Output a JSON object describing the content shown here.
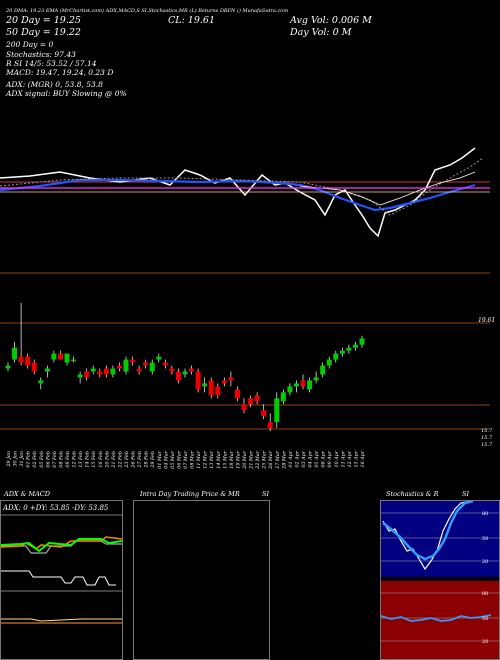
{
  "header": {
    "line1": "20 DMA: 19.23  EMA (MrChartist.com) ADX,MACD,S  SI,Stochastics,MR  (L) Returns DBFN  () MunafaSutra.com",
    "sma_20": "20 Day = 19.25",
    "sma_50": "50 Day = 19.22",
    "sma_200": "200 Day = 0",
    "stochastics": "Stochastics: 97.43",
    "rsi": "R    SI 14/5: 53.52 / 57.14",
    "macd": "MACD: 19.47, 19.24, 0.23 D",
    "adx": "ADX:                              (MGR) 0, 53.8, 53.8",
    "adx_signal": "ADX signal:                         BUY Slowing @ 0%",
    "close": "CL: 19.61",
    "avg_vol": "Avg Vol: 0.006  M",
    "day_vol": "Day Vol: 0   M"
  },
  "price_labels": {
    "last": "19.61",
    "level1": "15.7",
    "level2": "15.7",
    "level3": "15.7"
  },
  "chart_data": {
    "type": "candlestick",
    "dates": [
      "29 Jan",
      "30 Jan",
      "31 Jan",
      "01 Feb",
      "02 Feb",
      "05 Feb",
      "06 Feb",
      "07 Feb",
      "08 Feb",
      "09 Feb",
      "12 Feb",
      "13 Feb",
      "14 Feb",
      "15 Feb",
      "16 Feb",
      "20 Feb",
      "21 Feb",
      "22 Feb",
      "23 Feb",
      "26 Feb",
      "27 Feb",
      "28 Feb",
      "29 Feb",
      "01 Mar",
      "04 Mar",
      "05 Mar",
      "06 Mar",
      "07 Mar",
      "08 Mar",
      "11 Mar",
      "12 Mar",
      "13 Mar",
      "14 Mar",
      "15 Mar",
      "18 Mar",
      "19 Mar",
      "20 Mar",
      "21 Mar",
      "22 Mar",
      "25 Mar",
      "26 Mar",
      "27 Mar",
      "28 Mar",
      "01 Apr",
      "02 Apr",
      "03 Apr",
      "04 Apr",
      "05 Apr",
      "08 Apr",
      "09 Apr",
      "10 Apr",
      "11 Apr",
      "12 Apr",
      "15 Apr",
      "16 Apr"
    ],
    "candles": [
      {
        "o": 18.6,
        "h": 18.8,
        "l": 18.5,
        "c": 18.7
      },
      {
        "o": 18.9,
        "h": 19.5,
        "l": 18.8,
        "c": 19.3
      },
      {
        "o": 19.0,
        "h": 20.8,
        "l": 18.7,
        "c": 18.8
      },
      {
        "o": 19.0,
        "h": 19.1,
        "l": 18.6,
        "c": 18.7
      },
      {
        "o": 18.8,
        "h": 18.9,
        "l": 18.4,
        "c": 18.5
      },
      {
        "o": 18.1,
        "h": 18.3,
        "l": 17.9,
        "c": 18.2
      },
      {
        "o": 18.5,
        "h": 18.7,
        "l": 18.3,
        "c": 18.6
      },
      {
        "o": 18.9,
        "h": 19.2,
        "l": 18.8,
        "c": 19.1
      },
      {
        "o": 19.1,
        "h": 19.2,
        "l": 18.9,
        "c": 18.9
      },
      {
        "o": 18.8,
        "h": 19.1,
        "l": 18.7,
        "c": 19.1
      },
      {
        "o": 18.9,
        "h": 19.0,
        "l": 18.8,
        "c": 18.9
      },
      {
        "o": 18.3,
        "h": 18.5,
        "l": 18.1,
        "c": 18.4
      },
      {
        "o": 18.5,
        "h": 18.6,
        "l": 18.2,
        "c": 18.3
      },
      {
        "o": 18.5,
        "h": 18.7,
        "l": 18.4,
        "c": 18.6
      },
      {
        "o": 18.5,
        "h": 18.6,
        "l": 18.3,
        "c": 18.4
      },
      {
        "o": 18.6,
        "h": 18.7,
        "l": 18.3,
        "c": 18.4
      },
      {
        "o": 18.4,
        "h": 18.7,
        "l": 18.3,
        "c": 18.6
      },
      {
        "o": 18.7,
        "h": 18.8,
        "l": 18.5,
        "c": 18.6
      },
      {
        "o": 18.5,
        "h": 19.0,
        "l": 18.4,
        "c": 18.9
      },
      {
        "o": 18.9,
        "h": 19.0,
        "l": 18.7,
        "c": 18.8
      },
      {
        "o": 18.6,
        "h": 18.7,
        "l": 18.4,
        "c": 18.5
      },
      {
        "o": 18.8,
        "h": 18.9,
        "l": 18.6,
        "c": 18.7
      },
      {
        "o": 18.5,
        "h": 18.9,
        "l": 18.4,
        "c": 18.8
      },
      {
        "o": 18.9,
        "h": 19.1,
        "l": 18.8,
        "c": 19.0
      },
      {
        "o": 18.8,
        "h": 18.9,
        "l": 18.6,
        "c": 18.7
      },
      {
        "o": 18.6,
        "h": 18.7,
        "l": 18.4,
        "c": 18.5
      },
      {
        "o": 18.5,
        "h": 18.6,
        "l": 18.1,
        "c": 18.2
      },
      {
        "o": 18.4,
        "h": 18.6,
        "l": 18.3,
        "c": 18.5
      },
      {
        "o": 18.6,
        "h": 18.7,
        "l": 18.4,
        "c": 18.5
      },
      {
        "o": 18.5,
        "h": 18.6,
        "l": 17.8,
        "c": 17.9
      },
      {
        "o": 18.0,
        "h": 18.3,
        "l": 17.8,
        "c": 18.1
      },
      {
        "o": 18.2,
        "h": 18.3,
        "l": 17.6,
        "c": 17.7
      },
      {
        "o": 18.0,
        "h": 18.1,
        "l": 17.6,
        "c": 17.7
      },
      {
        "o": 18.2,
        "h": 18.3,
        "l": 18.0,
        "c": 18.1
      },
      {
        "o": 18.3,
        "h": 18.5,
        "l": 18.0,
        "c": 18.2
      },
      {
        "o": 17.9,
        "h": 18.0,
        "l": 17.5,
        "c": 17.6
      },
      {
        "o": 17.4,
        "h": 17.6,
        "l": 17.1,
        "c": 17.2
      },
      {
        "o": 17.6,
        "h": 17.7,
        "l": 17.3,
        "c": 17.4
      },
      {
        "o": 17.7,
        "h": 17.8,
        "l": 17.4,
        "c": 17.5
      },
      {
        "o": 17.2,
        "h": 17.4,
        "l": 16.9,
        "c": 17.0
      },
      {
        "o": 16.8,
        "h": 17.1,
        "l": 16.5,
        "c": 16.6
      },
      {
        "o": 16.8,
        "h": 17.8,
        "l": 16.6,
        "c": 17.6
      },
      {
        "o": 17.5,
        "h": 17.9,
        "l": 17.4,
        "c": 17.8
      },
      {
        "o": 17.8,
        "h": 18.1,
        "l": 17.7,
        "c": 18.0
      },
      {
        "o": 18.0,
        "h": 18.2,
        "l": 17.8,
        "c": 18.1
      },
      {
        "o": 18.2,
        "h": 18.4,
        "l": 17.9,
        "c": 18.0
      },
      {
        "o": 17.9,
        "h": 18.3,
        "l": 17.8,
        "c": 18.2
      },
      {
        "o": 18.2,
        "h": 18.5,
        "l": 18.1,
        "c": 18.3
      },
      {
        "o": 18.4,
        "h": 18.8,
        "l": 18.3,
        "c": 18.7
      },
      {
        "o": 18.7,
        "h": 19.0,
        "l": 18.6,
        "c": 18.9
      },
      {
        "o": 18.9,
        "h": 19.2,
        "l": 18.8,
        "c": 19.1
      },
      {
        "o": 19.1,
        "h": 19.3,
        "l": 19.0,
        "c": 19.2
      },
      {
        "o": 19.2,
        "h": 19.4,
        "l": 19.1,
        "c": 19.3
      },
      {
        "o": 19.3,
        "h": 19.5,
        "l": 19.2,
        "c": 19.4
      },
      {
        "o": 19.4,
        "h": 19.7,
        "l": 19.3,
        "c": 19.61
      }
    ],
    "ylim": [
      16.2,
      20.9
    ],
    "close": 19.61,
    "colors": {
      "up": "#00cc00",
      "down": "#ee0000",
      "wick": "#ffffff"
    }
  },
  "panels": {
    "adx_title": "ADX  & MACD",
    "adx_legend": "ADX: 0  +DY: 53.85  -DY: 53.85",
    "mr_title": "Intra  Day Trading Price  & MR",
    "mr_si": "SI",
    "stoch_title": "Stochastics & R",
    "stoch_si": "SI",
    "stoch_ticks": [
      "80",
      "50",
      "20"
    ],
    "rsi_ticks": [
      "80",
      "50",
      "20"
    ]
  }
}
